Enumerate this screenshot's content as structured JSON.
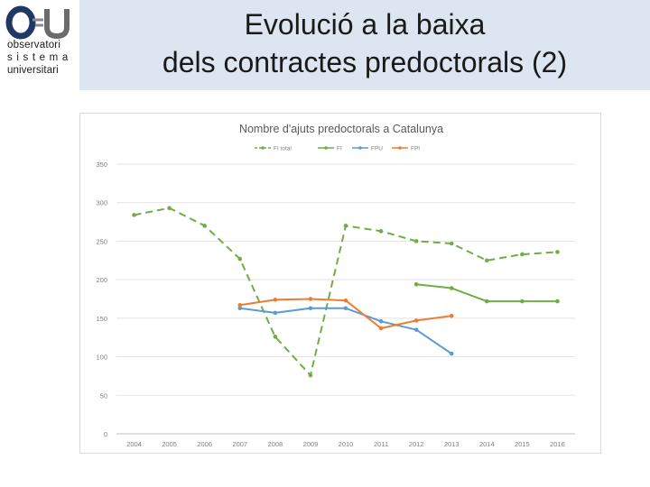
{
  "slide": {
    "title_line1": "Evolució a la baixa",
    "title_line2": "dels contractes predoctorals (2)"
  },
  "logo": {
    "mark": "OSU",
    "line1": "observatori",
    "line2": "sistema",
    "line3": "universitari"
  },
  "colors": {
    "header_band": "#dde5f0",
    "fi_total": "#70ad47",
    "fi": "#70ad47",
    "fpu": "#5b9bd5",
    "fpi": "#ed7d31",
    "logo_blue": "#1f3864"
  },
  "chart_data": {
    "type": "line",
    "title": "Nombre d'ajuts predoctorals a Catalunya",
    "xlabel": "",
    "ylabel": "",
    "categories": [
      "2004",
      "2005",
      "2006",
      "2007",
      "2008",
      "2009",
      "2010",
      "2011",
      "2012",
      "2013",
      "2014",
      "2015",
      "2016"
    ],
    "ylim": [
      0,
      350
    ],
    "yticks": [
      0,
      50,
      100,
      150,
      200,
      250,
      300,
      350
    ],
    "grid": true,
    "legend_position": "top",
    "series": [
      {
        "name": "FI total",
        "style": "dashed",
        "color": "#70ad47",
        "values": [
          284,
          293,
          270,
          227,
          126,
          76,
          270,
          263,
          250,
          247,
          225,
          233,
          236
        ]
      },
      {
        "name": "FI",
        "style": "solid",
        "color": "#70ad47",
        "values": [
          null,
          null,
          null,
          null,
          null,
          null,
          null,
          null,
          194,
          189,
          172,
          172,
          172
        ]
      },
      {
        "name": "FPU",
        "style": "solid",
        "color": "#5b9bd5",
        "values": [
          null,
          null,
          null,
          163,
          157,
          163,
          163,
          146,
          135,
          104,
          null,
          null,
          null
        ]
      },
      {
        "name": "FPI",
        "style": "solid",
        "color": "#ed7d31",
        "values": [
          null,
          null,
          null,
          167,
          174,
          175,
          173,
          137,
          147,
          153,
          null,
          null,
          null
        ]
      }
    ]
  }
}
